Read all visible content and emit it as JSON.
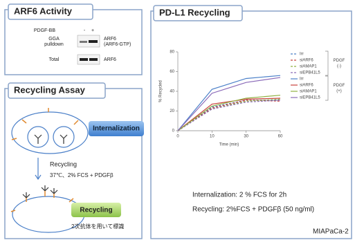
{
  "panels": {
    "arf6": {
      "title": "ARF6 Activity",
      "pdgf_label": "PDGF-BB",
      "minus": "-",
      "plus": "+",
      "rows": [
        {
          "label": [
            "GGA",
            "pulldown"
          ],
          "right": [
            "ARF6",
            "(ARF6-GTP)"
          ]
        },
        {
          "label": [
            "Total"
          ],
          "right": [
            "ARF6"
          ]
        }
      ]
    },
    "assay": {
      "title": "Recycling Assay",
      "internalization": "Internalization",
      "step": "Recycling",
      "conditions": "37℃、2% FCS + PDGFβ",
      "recycling": "Recycling",
      "note": "2次抗体を用いて標識"
    },
    "pdl1": {
      "title": "PD-L1 Recycling",
      "notes": [
        "Internalization: 2 % FCS for 2h",
        "Recycling: 2%FCS + PDGFβ (50 ng/ml)"
      ],
      "cell_line": "MIAPaCa-2"
    }
  },
  "chart_data": {
    "type": "line",
    "x_label": "Time (min)",
    "y_label": "% Recycled",
    "categories": [
      "0",
      "10",
      "30",
      "60"
    ],
    "ylim": [
      0,
      80
    ],
    "yticks": [
      0,
      20,
      40,
      60,
      80
    ],
    "series": [
      {
        "name": "Irr",
        "color": "#4a7fc8",
        "dashed": true,
        "values": [
          0,
          24,
          31,
          31
        ]
      },
      {
        "name": "siARF6",
        "color": "#c8403a",
        "dashed": true,
        "values": [
          0,
          23,
          31,
          30
        ]
      },
      {
        "name": "siAMAP1",
        "color": "#8fb040",
        "dashed": true,
        "values": [
          0,
          22,
          30,
          32
        ]
      },
      {
        "name": "siEPB41L5",
        "color": "#8a6ab8",
        "dashed": true,
        "values": [
          0,
          22,
          29,
          31
        ]
      },
      {
        "name": "Irr",
        "color": "#4a7fc8",
        "dashed": false,
        "values": [
          0,
          42,
          53,
          56
        ]
      },
      {
        "name": "siARF6",
        "color": "#c8403a",
        "dashed": false,
        "values": [
          0,
          27,
          32,
          33
        ]
      },
      {
        "name": "siAMAP1",
        "color": "#8fb040",
        "dashed": false,
        "values": [
          0,
          25,
          33,
          36
        ]
      },
      {
        "name": "siEPB41L5",
        "color": "#8a6ab8",
        "dashed": false,
        "values": [
          0,
          38,
          49,
          54
        ]
      }
    ],
    "legend_groups": [
      {
        "title": "PDGF",
        "sign": "(-)"
      },
      {
        "title": "PDGF",
        "sign": "(+)"
      }
    ]
  }
}
